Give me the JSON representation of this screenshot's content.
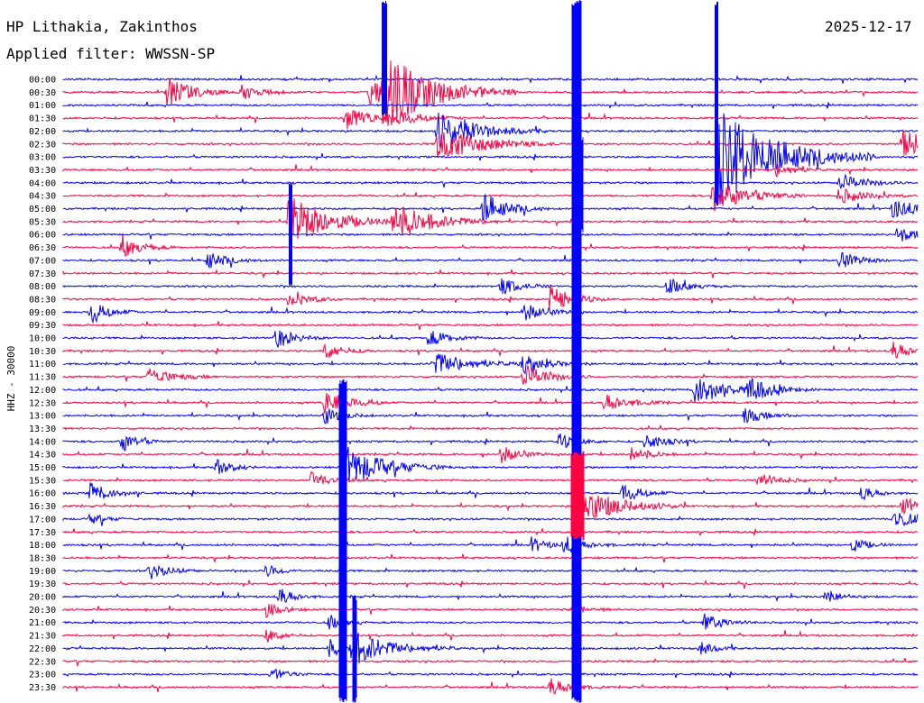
{
  "header": {
    "station": "HP Lithakia, Zakinthos",
    "filter": "Applied filter: WWSSN-SP",
    "date": "2025-12-17"
  },
  "chart_data": {
    "type": "line",
    "title": "HP Lithakia, Zakinthos",
    "subtitle": "Applied filter: WWSSN-SP",
    "ylabel": "HHZ - 30000",
    "row_labels": [
      "00:00",
      "00:30",
      "01:00",
      "01:30",
      "02:00",
      "02:30",
      "03:00",
      "03:30",
      "04:00",
      "04:30",
      "05:00",
      "05:30",
      "06:00",
      "06:30",
      "07:00",
      "07:30",
      "08:00",
      "08:30",
      "09:00",
      "09:30",
      "10:00",
      "10:30",
      "11:00",
      "11:30",
      "12:00",
      "12:30",
      "13:00",
      "13:30",
      "14:00",
      "14:30",
      "15:00",
      "15:30",
      "16:00",
      "16:30",
      "17:00",
      "17:30",
      "18:00",
      "18:30",
      "19:00",
      "19:30",
      "20:00",
      "20:30",
      "21:00",
      "21:30",
      "22:00",
      "22:30",
      "23:00",
      "23:30"
    ],
    "colors": {
      "even_rows": "#0000ff",
      "odd_rows": "#ff0040"
    },
    "grid": false
  }
}
